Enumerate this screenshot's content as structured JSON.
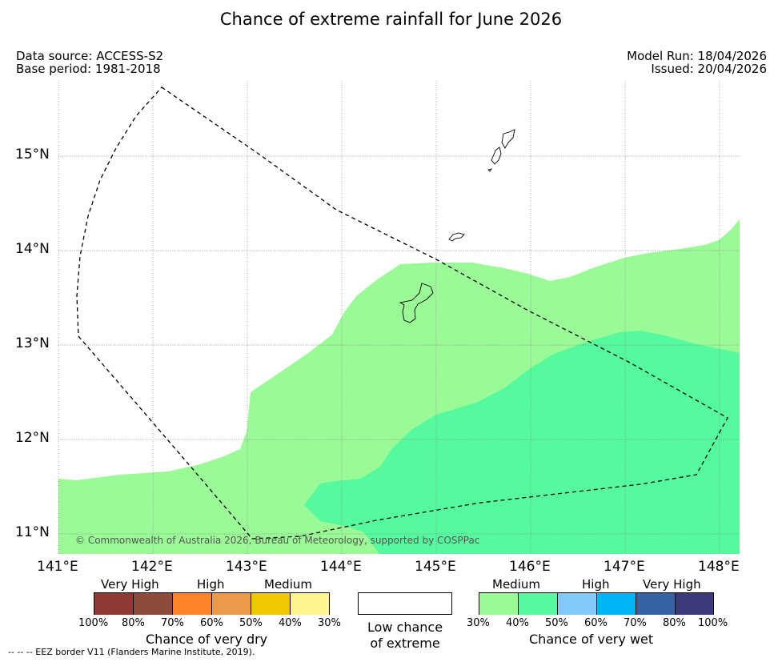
{
  "header": {
    "title": "Chance of extreme rainfall for June 2026",
    "data_source": "Data source: ACCESS-S2",
    "base_period": "Base period: 1981-2018",
    "model_run": "Model Run: 18/04/2026",
    "issued": "Issued: 20/04/2026"
  },
  "map": {
    "lat_ticks": [
      {
        "value": 15,
        "label": "15°N"
      },
      {
        "value": 14,
        "label": "14°N"
      },
      {
        "value": 13,
        "label": "13°N"
      },
      {
        "value": 12,
        "label": "12°N"
      },
      {
        "value": 11,
        "label": "11°N"
      }
    ],
    "lon_ticks": [
      {
        "value": 141,
        "label": "141°E"
      },
      {
        "value": 142,
        "label": "142°E"
      },
      {
        "value": 143,
        "label": "143°E"
      },
      {
        "value": 144,
        "label": "144°E"
      },
      {
        "value": 145,
        "label": "145°E"
      },
      {
        "value": 146,
        "label": "146°E"
      },
      {
        "value": 147,
        "label": "147°E"
      },
      {
        "value": 148,
        "label": "148°E"
      }
    ],
    "copyright": "© Commonwealth of Australia 2026, Bureau of Meteorology, supported by COSPPac",
    "zones": [
      {
        "name": "wet-medium-30-40",
        "color": "#99fa96"
      },
      {
        "name": "wet-medium-40-50",
        "color": "#55f99e"
      }
    ]
  },
  "legend": {
    "dry": {
      "categories": [
        "Very High",
        "High",
        "Medium"
      ],
      "colors": [
        "#8d3a33",
        "#8e4a3a",
        "#ff8228",
        "#eb9a4c",
        "#f0c800",
        "#fff58f"
      ],
      "ticks": [
        "100%",
        "80%",
        "70%",
        "60%",
        "50%",
        "40%",
        "30%"
      ],
      "title": "Chance of very dry"
    },
    "low": {
      "line1": "Low chance",
      "line2": "of extreme"
    },
    "wet": {
      "categories": [
        "Medium",
        "High",
        "Very High"
      ],
      "colors": [
        "#99fa96",
        "#55f99e",
        "#82cafa",
        "#00b4f5",
        "#3762a3",
        "#3b3b7a"
      ],
      "ticks": [
        "30%",
        "40%",
        "50%",
        "60%",
        "70%",
        "80%",
        "100%"
      ],
      "title": "Chance of very wet"
    }
  },
  "footer": {
    "eez_note": "--  --  -- EEZ border V11 (Flanders Marine Institute, 2019)."
  }
}
